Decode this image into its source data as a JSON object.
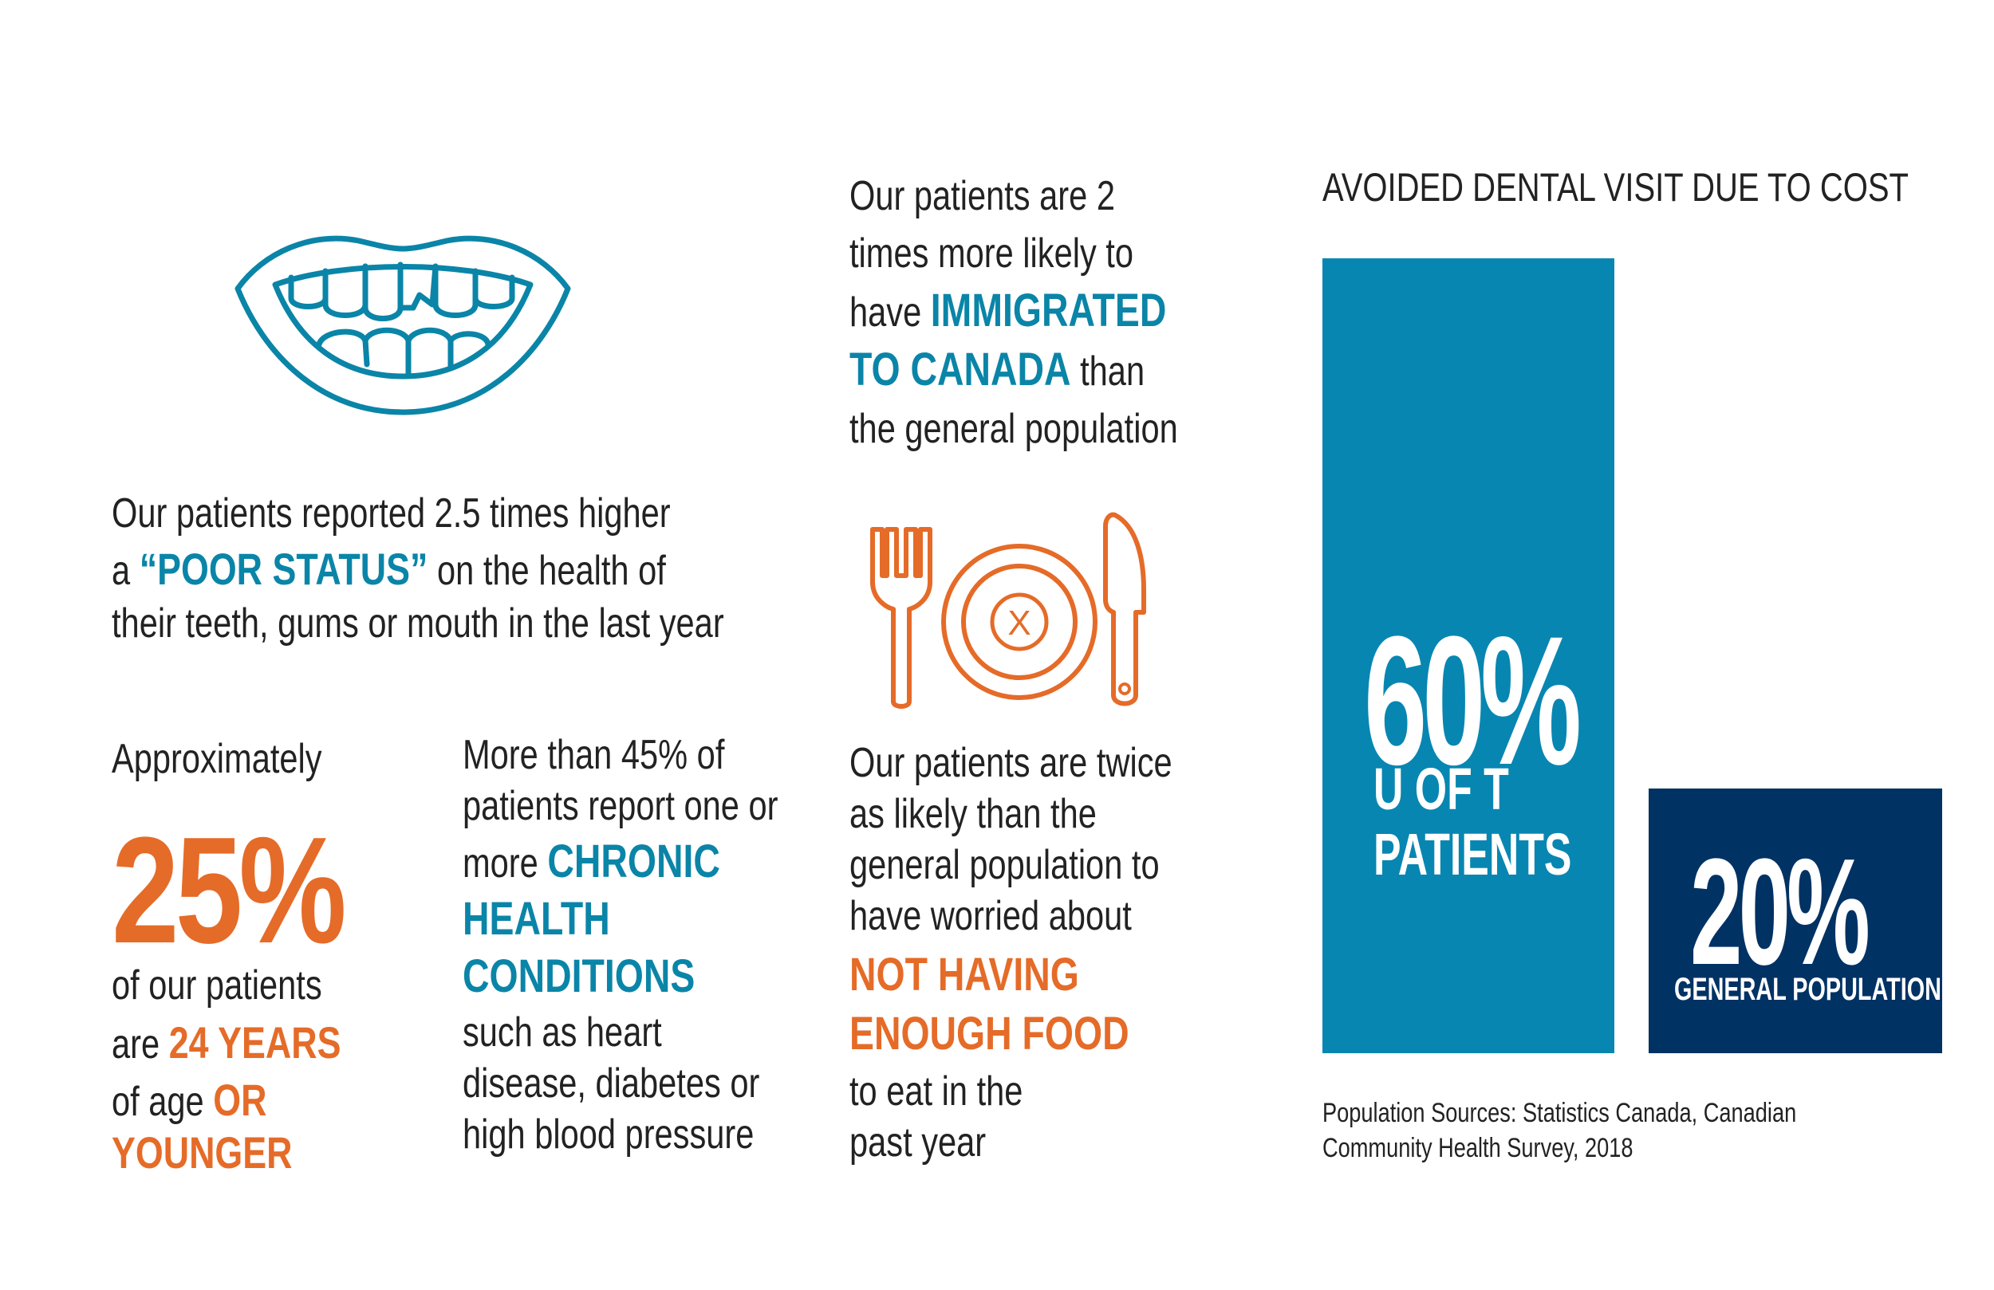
{
  "colors": {
    "blue": "#0a85a8",
    "orange": "#e56b28",
    "bar1": "#0886b2",
    "bar2": "#003264"
  },
  "icons": {
    "mouth": "mouth-icon",
    "fork": "fork-icon",
    "plate": "plate-icon",
    "knife": "knife-icon"
  },
  "oral_health": {
    "line1": "Our patients reported 2.5 times higher",
    "line2_pre": "a ",
    "line2_highlight": "“POOR STATUS”",
    "line2_post": " on the health of",
    "line3": "their teeth, gums or mouth in the last year"
  },
  "youth": {
    "intro": "Approximately",
    "percent": "25%",
    "line1": "of our patients",
    "line2_pre": "are ",
    "line2_highlight": "24 YEARS",
    "line3_pre": "of age ",
    "line3_highlight": "OR",
    "line4_highlight": "YOUNGER"
  },
  "chronic": {
    "line1": "More than 45% of",
    "line2": "patients report one or",
    "line3_pre": "more ",
    "line3_highlight": "CHRONIC",
    "line4_highlight": "HEALTH",
    "line5_highlight": "CONDITIONS",
    "line6": "such as heart",
    "line7": "disease, diabetes or",
    "line8": "high blood pressure"
  },
  "immigration": {
    "line1": "Our patients are 2",
    "line2": "times more likely to",
    "line3_pre": "have ",
    "line3_highlight": "IMMIGRATED",
    "line4_highlight": "TO CANADA",
    "line4_post": " than",
    "line5": "the general population"
  },
  "food": {
    "plate_mark": "X",
    "line1": "Our patients are twice",
    "line2": "as likely than the",
    "line3": "general population to",
    "line4": "have worried about",
    "line5_highlight": "NOT HAVING",
    "line6_highlight": "ENOUGH FOOD",
    "line7": "to eat in the",
    "line8": "past year"
  },
  "chart_data": {
    "type": "bar",
    "title": "AVOIDED DENTAL VISIT DUE TO COST",
    "categories": [
      "U OF T PATIENTS",
      "GENERAL POPULATION"
    ],
    "values": [
      60,
      20
    ],
    "value_labels": [
      "60%",
      "20%"
    ],
    "category_label_lines": [
      [
        "U OF T",
        "PATIENTS"
      ],
      [
        "GENERAL POPULATION"
      ]
    ],
    "colors": [
      "#0886b2",
      "#003264"
    ],
    "ylim": [
      0,
      60
    ],
    "grid": false,
    "source_line1": "Population Sources: Statistics Canada, Canadian",
    "source_line2": "Community Health Survey, 2018"
  }
}
